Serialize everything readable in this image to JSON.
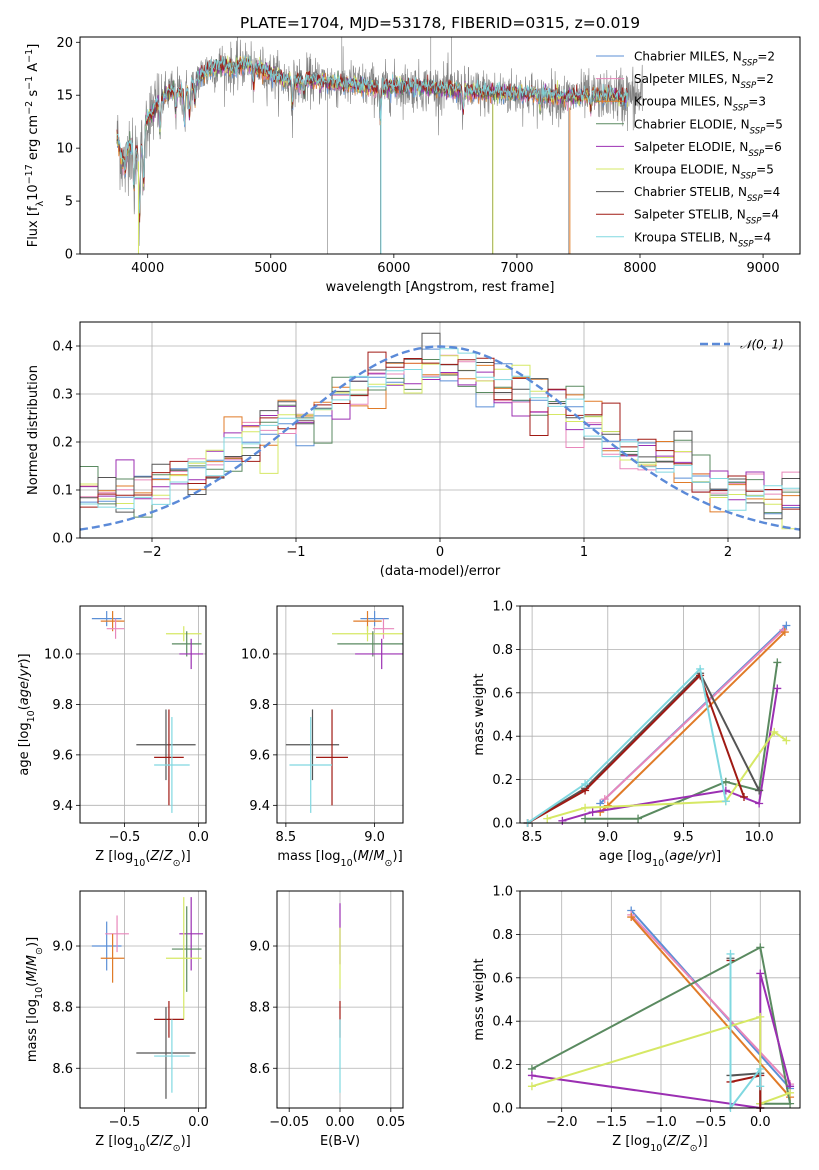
{
  "figure_title": "PLATE=1704, MJD=53178, FIBERID=0315, z=0.019",
  "colors": {
    "Chabrier MILES": "#5b8fd6",
    "Salpeter MILES": "#e887bb",
    "Kroupa MILES": "#e07b28",
    "Chabrier ELODIE": "#5a8a60",
    "Salpeter ELODIE": "#9b2fb2",
    "Kroupa ELODIE": "#d6e865",
    "Chabrier STELIB": "#555555",
    "Salpeter STELIB": "#a01a14",
    "Kroupa STELIB": "#80d8e0"
  },
  "chart_data": [
    {
      "id": "spectrum",
      "type": "line",
      "title": "PLATE=1704, MJD=53178, FIBERID=0315, z=0.019",
      "xlabel": "wavelength [Angstrom, rest frame]",
      "ylabel": "Flux [f_λ10^-17 erg cm^-2 s^-1 A^-1]",
      "xlim": [
        3450,
        9300
      ],
      "ylim": [
        0,
        20.5
      ],
      "xticks": [
        4000,
        5000,
        6000,
        7000,
        8000,
        9000
      ],
      "yticks": [
        0,
        5,
        10,
        15,
        20
      ],
      "grid": false,
      "legend_position": "top-right",
      "legend": [
        {
          "label": "Chabrier MILES, N",
          "sub": "SSP",
          "tail": "=2"
        },
        {
          "label": "Salpeter MILES, N",
          "sub": "SSP",
          "tail": "=2"
        },
        {
          "label": "Kroupa MILES, N",
          "sub": "SSP",
          "tail": "=3"
        },
        {
          "label": "Chabrier ELODIE, N",
          "sub": "SSP",
          "tail": "=5"
        },
        {
          "label": "Salpeter ELODIE, N",
          "sub": "SSP",
          "tail": "=6"
        },
        {
          "label": "Kroupa ELODIE, N",
          "sub": "SSP",
          "tail": "=5"
        },
        {
          "label": "Chabrier STELIB, N",
          "sub": "SSP",
          "tail": "=4"
        },
        {
          "label": "Salpeter STELIB, N",
          "sub": "SSP",
          "tail": "=4"
        },
        {
          "label": "Kroupa STELIB, N",
          "sub": "SSP",
          "tail": "=4"
        }
      ],
      "continuum": [
        [
          3750,
          11
        ],
        [
          3800,
          8.5
        ],
        [
          3850,
          10.5
        ],
        [
          3900,
          9.5
        ],
        [
          3950,
          10
        ],
        [
          3980,
          12.5
        ],
        [
          4020,
          13
        ],
        [
          4100,
          14.5
        ],
        [
          4200,
          15.5
        ],
        [
          4300,
          15.2
        ],
        [
          4400,
          16.5
        ],
        [
          4500,
          17.5
        ],
        [
          4600,
          17.8
        ],
        [
          4700,
          17.5
        ],
        [
          4800,
          18
        ],
        [
          4900,
          17.5
        ],
        [
          5000,
          17
        ],
        [
          5100,
          16.5
        ],
        [
          5200,
          16.2
        ],
        [
          5300,
          16.5
        ],
        [
          5400,
          16.3
        ],
        [
          5500,
          16.2
        ],
        [
          5600,
          16
        ],
        [
          5700,
          16
        ],
        [
          5800,
          15.8
        ],
        [
          5900,
          15.7
        ],
        [
          6000,
          15.8
        ],
        [
          6200,
          15.8
        ],
        [
          6400,
          15.6
        ],
        [
          6600,
          15.4
        ],
        [
          6800,
          15.2
        ],
        [
          7000,
          15.2
        ],
        [
          7200,
          15
        ],
        [
          7400,
          14.8
        ],
        [
          7600,
          15
        ],
        [
          7800,
          14.9
        ],
        [
          7900,
          14.8
        ]
      ],
      "absorption_lines": [
        [
          3820,
          1.5
        ],
        [
          3888,
          4
        ],
        [
          3934,
          7
        ],
        [
          3968,
          6
        ],
        [
          4101,
          3
        ],
        [
          4227,
          2
        ],
        [
          4300,
          3
        ],
        [
          4340,
          3
        ],
        [
          4383,
          2
        ],
        [
          4861,
          2
        ],
        [
          5176,
          2.5
        ],
        [
          5270,
          1.5
        ],
        [
          5890,
          3.5
        ],
        [
          6563,
          2
        ],
        [
          7190,
          1.5
        ],
        [
          7600,
          1.5
        ]
      ],
      "model_end_A": 7900,
      "data_end_A": 8020
    },
    {
      "id": "residuals",
      "type": "step",
      "xlabel": "(data-model)/error",
      "ylabel": "Normed distribution",
      "xlim": [
        -2.5,
        2.5
      ],
      "ylim": [
        0,
        0.45
      ],
      "xticks": [
        -2,
        -1,
        0,
        1,
        2
      ],
      "yticks": [
        0.0,
        0.1,
        0.2,
        0.3,
        0.4
      ],
      "grid": true,
      "bins": 40,
      "reference": {
        "label": "𝒩(0, 1)",
        "mean": 0,
        "sigma": 1
      },
      "legend_position": "top-right"
    },
    {
      "id": "age-vs-Z",
      "type": "errorbar",
      "xlabel": "Z [log10(Z/Z⊙)]",
      "ylabel": "age  [log10(age/yr)]",
      "xlim": [
        -0.8,
        0.05
      ],
      "ylim": [
        9.33,
        10.19
      ],
      "xticks": [
        -0.5,
        0.0
      ],
      "yticks": [
        9.4,
        9.6,
        9.8,
        10.0
      ],
      "grid": true,
      "points": [
        {
          "model": "Chabrier MILES",
          "x": -0.62,
          "y": 10.14,
          "ex": 0.1,
          "ey": 0.03
        },
        {
          "model": "Kroupa MILES",
          "x": -0.58,
          "y": 10.13,
          "ex": 0.08,
          "ey": 0.04
        },
        {
          "model": "Salpeter MILES",
          "x": -0.56,
          "y": 10.1,
          "ex": 0.06,
          "ey": 0.04
        },
        {
          "model": "Kroupa ELODIE",
          "x": -0.1,
          "y": 10.08,
          "ex": 0.12,
          "ey": 0.03
        },
        {
          "model": "Chabrier ELODIE",
          "x": -0.08,
          "y": 10.04,
          "ex": 0.1,
          "ey": 0.05
        },
        {
          "model": "Salpeter ELODIE",
          "x": -0.05,
          "y": 10.0,
          "ex": 0.08,
          "ey": 0.06
        },
        {
          "model": "Chabrier STELIB",
          "x": -0.22,
          "y": 9.64,
          "ex": 0.2,
          "ey": 0.14
        },
        {
          "model": "Salpeter STELIB",
          "x": -0.2,
          "y": 9.59,
          "ex": 0.1,
          "ey": 0.19
        },
        {
          "model": "Kroupa STELIB",
          "x": -0.18,
          "y": 9.56,
          "ex": 0.12,
          "ey": 0.19
        }
      ]
    },
    {
      "id": "age-vs-mass",
      "type": "errorbar",
      "xlabel": "mass [log10(M/M⊙)]",
      "ylabel": "",
      "xlim": [
        8.45,
        9.16
      ],
      "ylim": [
        9.33,
        10.19
      ],
      "xticks": [
        8.5,
        9.0
      ],
      "yticks": [
        9.4,
        9.6,
        9.8,
        10.0
      ],
      "grid": true,
      "points": [
        {
          "model": "Chabrier MILES",
          "x": 9.0,
          "y": 10.14,
          "ex": 0.08,
          "ey": 0.03
        },
        {
          "model": "Kroupa MILES",
          "x": 8.96,
          "y": 10.13,
          "ex": 0.08,
          "ey": 0.04
        },
        {
          "model": "Salpeter MILES",
          "x": 9.05,
          "y": 10.1,
          "ex": 0.06,
          "ey": 0.04
        },
        {
          "model": "Kroupa ELODIE",
          "x": 8.96,
          "y": 10.08,
          "ex": 0.2,
          "ey": 0.03
        },
        {
          "model": "Chabrier ELODIE",
          "x": 8.99,
          "y": 10.04,
          "ex": 0.2,
          "ey": 0.05
        },
        {
          "model": "Salpeter ELODIE",
          "x": 9.04,
          "y": 10.0,
          "ex": 0.15,
          "ey": 0.06
        },
        {
          "model": "Chabrier STELIB",
          "x": 8.65,
          "y": 9.64,
          "ex": 0.15,
          "ey": 0.14
        },
        {
          "model": "Salpeter STELIB",
          "x": 8.76,
          "y": 9.59,
          "ex": 0.09,
          "ey": 0.19
        },
        {
          "model": "Kroupa STELIB",
          "x": 8.64,
          "y": 9.56,
          "ex": 0.12,
          "ey": 0.19
        }
      ]
    },
    {
      "id": "massweight-vs-age",
      "type": "line",
      "xlabel": "age  [log10(age/yr)]",
      "ylabel": "mass weight",
      "xlim": [
        8.42,
        10.27
      ],
      "ylim": [
        0,
        1.0
      ],
      "xticks": [
        8.5,
        9.0,
        9.5,
        10.0
      ],
      "yticks": [
        0.0,
        0.2,
        0.4,
        0.6,
        0.8,
        1.0
      ],
      "grid": true,
      "series": [
        {
          "model": "Chabrier MILES",
          "x": [
            8.95,
            10.18
          ],
          "y": [
            0.09,
            0.91
          ]
        },
        {
          "model": "Salpeter MILES",
          "x": [
            8.98,
            10.16
          ],
          "y": [
            0.11,
            0.89
          ]
        },
        {
          "model": "Kroupa MILES",
          "x": [
            8.95,
            9.0,
            10.17
          ],
          "y": [
            0.05,
            0.08,
            0.88
          ]
        },
        {
          "model": "Chabrier ELODIE",
          "x": [
            8.85,
            9.2,
            9.78,
            10.0,
            10.12
          ],
          "y": [
            0.02,
            0.02,
            0.19,
            0.15,
            0.74
          ]
        },
        {
          "model": "Salpeter ELODIE",
          "x": [
            8.7,
            8.9,
            9.78,
            10.0,
            10.12
          ],
          "y": [
            0.01,
            0.05,
            0.15,
            0.09,
            0.62
          ]
        },
        {
          "model": "Kroupa ELODIE",
          "x": [
            8.6,
            8.85,
            9.78,
            10.1,
            10.18
          ],
          "y": [
            0.02,
            0.07,
            0.1,
            0.42,
            0.38
          ]
        },
        {
          "model": "Chabrier STELIB",
          "x": [
            8.47,
            8.85,
            9.61,
            10.0
          ],
          "y": [
            0.0,
            0.16,
            0.69,
            0.15
          ]
        },
        {
          "model": "Salpeter STELIB",
          "x": [
            8.47,
            8.85,
            9.61,
            9.9
          ],
          "y": [
            0.0,
            0.15,
            0.68,
            0.12
          ]
        },
        {
          "model": "Kroupa STELIB",
          "x": [
            8.47,
            8.85,
            9.61,
            9.78
          ],
          "y": [
            0.0,
            0.18,
            0.71,
            0.1
          ]
        }
      ]
    },
    {
      "id": "mass-vs-Z",
      "type": "errorbar",
      "xlabel": "Z [log10(Z/Z⊙)]",
      "ylabel": "mass [log10(M/M⊙)]",
      "xlim": [
        -0.8,
        0.05
      ],
      "ylim": [
        8.47,
        9.18
      ],
      "xticks": [
        -0.5,
        0.0
      ],
      "yticks": [
        8.6,
        8.8,
        9.0
      ],
      "grid": true,
      "points": [
        {
          "model": "Chabrier MILES",
          "x": -0.62,
          "y": 9.0,
          "ex": 0.1,
          "ey": 0.08
        },
        {
          "model": "Salpeter MILES",
          "x": -0.55,
          "y": 9.04,
          "ex": 0.08,
          "ey": 0.06
        },
        {
          "model": "Kroupa MILES",
          "x": -0.58,
          "y": 8.96,
          "ex": 0.08,
          "ey": 0.08
        },
        {
          "model": "Salpeter ELODIE",
          "x": -0.05,
          "y": 9.04,
          "ex": 0.08,
          "ey": 0.12
        },
        {
          "model": "Chabrier ELODIE",
          "x": -0.08,
          "y": 8.99,
          "ex": 0.1,
          "ey": 0.14
        },
        {
          "model": "Kroupa ELODIE",
          "x": -0.1,
          "y": 8.96,
          "ex": 0.12,
          "ey": 0.2
        },
        {
          "model": "Salpeter STELIB",
          "x": -0.2,
          "y": 8.76,
          "ex": 0.1,
          "ey": 0.06
        },
        {
          "model": "Chabrier STELIB",
          "x": -0.22,
          "y": 8.65,
          "ex": 0.2,
          "ey": 0.15
        },
        {
          "model": "Kroupa STELIB",
          "x": -0.18,
          "y": 8.64,
          "ex": 0.12,
          "ey": 0.12
        }
      ]
    },
    {
      "id": "mass-vs-EBV",
      "type": "errorbar",
      "xlabel": "E(B-V)",
      "ylabel": "",
      "xlim": [
        -0.062,
        0.062
      ],
      "ylim": [
        8.47,
        9.18
      ],
      "xticks": [
        -0.05,
        0.0,
        0.05
      ],
      "yticks": [
        8.6,
        8.8,
        9.0
      ],
      "grid": true,
      "points": [
        {
          "model": "Salpeter ELODIE",
          "x": 0.0,
          "y": 9.04,
          "ex": 0,
          "ey": 0.1
        },
        {
          "model": "Kroupa ELODIE",
          "x": 0.0,
          "y": 8.96,
          "ex": 0,
          "ey": 0.1
        },
        {
          "model": "Salpeter STELIB",
          "x": 0.0,
          "y": 8.76,
          "ex": 0,
          "ey": 0.06
        },
        {
          "model": "Kroupa STELIB",
          "x": 0.0,
          "y": 8.64,
          "ex": 0,
          "ey": 0.12
        }
      ]
    },
    {
      "id": "massweight-vs-Z",
      "type": "line",
      "xlabel": "Z [log10(Z/Z⊙)]",
      "ylabel": "mass weight",
      "xlim": [
        -2.42,
        0.4
      ],
      "ylim": [
        0,
        1.0
      ],
      "xticks": [
        -2.0,
        -1.5,
        -1.0,
        -0.5,
        0.0
      ],
      "yticks": [
        0.0,
        0.2,
        0.4,
        0.6,
        0.8,
        1.0
      ],
      "grid": true,
      "series": [
        {
          "model": "Chabrier MILES",
          "x": [
            -1.3,
            0.3
          ],
          "y": [
            0.91,
            0.09
          ]
        },
        {
          "model": "Salpeter MILES",
          "x": [
            -1.3,
            0.3
          ],
          "y": [
            0.89,
            0.11
          ]
        },
        {
          "model": "Kroupa MILES",
          "x": [
            -1.3,
            0.3
          ],
          "y": [
            0.88,
            0.05
          ]
        },
        {
          "model": "Chabrier ELODIE",
          "x": [
            -2.3,
            0.0,
            0.3,
            0.0
          ],
          "y": [
            0.18,
            0.74,
            0.02,
            0.02
          ]
        },
        {
          "model": "Salpeter ELODIE",
          "x": [
            -2.3,
            0.0,
            0.0,
            0.3
          ],
          "y": [
            0.15,
            0.0,
            0.62,
            0.1
          ]
        },
        {
          "model": "Kroupa ELODIE",
          "x": [
            -2.3,
            0.0,
            0.0,
            0.3
          ],
          "y": [
            0.1,
            0.42,
            0.02,
            0.07
          ]
        },
        {
          "model": "Chabrier STELIB",
          "x": [
            -0.3,
            -0.3,
            0.0,
            0.0
          ],
          "y": [
            0.69,
            0.15,
            0.16,
            0.0
          ]
        },
        {
          "model": "Salpeter STELIB",
          "x": [
            -0.3,
            -0.3,
            0.0,
            0.0
          ],
          "y": [
            0.68,
            0.12,
            0.15,
            0.0
          ]
        },
        {
          "model": "Kroupa STELIB",
          "x": [
            -0.3,
            -0.3,
            0.0,
            0.0
          ],
          "y": [
            0.71,
            0.0,
            0.18,
            0.1
          ]
        }
      ]
    }
  ]
}
